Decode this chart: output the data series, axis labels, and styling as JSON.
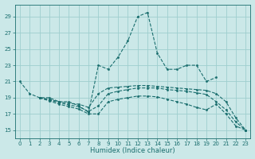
{
  "xlabel": "Humidex (Indice chaleur)",
  "bg_color": "#cbe8e8",
  "grid_color": "#9ecece",
  "line_color": "#1a6e6e",
  "xlim": [
    -0.5,
    23.5
  ],
  "ylim": [
    14.0,
    30.5
  ],
  "yticks": [
    15,
    17,
    19,
    21,
    23,
    25,
    27,
    29
  ],
  "xticks": [
    0,
    1,
    2,
    3,
    4,
    5,
    6,
    7,
    8,
    9,
    10,
    11,
    12,
    13,
    14,
    15,
    16,
    17,
    18,
    19,
    20,
    21,
    22,
    23
  ],
  "lines": [
    {
      "x": [
        0,
        1,
        2,
        3,
        4,
        5,
        6,
        7,
        8,
        9,
        10,
        11,
        12,
        13,
        14,
        15,
        16,
        17,
        18,
        19,
        20
      ],
      "y": [
        21.0,
        19.5,
        19.0,
        19.0,
        18.5,
        18.5,
        18.0,
        17.2,
        23.0,
        22.5,
        24.0,
        26.0,
        29.0,
        29.5,
        24.5,
        22.5,
        22.5,
        23.0,
        23.0,
        21.0,
        21.5
      ]
    },
    {
      "x": [
        2,
        3,
        4,
        5,
        6,
        7,
        8,
        9,
        10,
        11,
        12,
        13,
        14,
        15,
        16,
        17,
        18,
        19,
        20,
        21,
        22,
        23
      ],
      "y": [
        19.0,
        18.8,
        18.5,
        18.3,
        18.2,
        17.8,
        19.5,
        20.2,
        20.3,
        20.4,
        20.5,
        20.5,
        20.4,
        20.3,
        20.2,
        20.1,
        20.0,
        19.9,
        19.5,
        18.5,
        16.5,
        15.0
      ]
    },
    {
      "x": [
        2,
        3,
        4,
        5,
        6,
        7,
        8,
        9,
        10,
        11,
        12,
        13,
        14,
        15,
        16,
        17,
        18,
        19,
        20,
        21,
        22,
        23
      ],
      "y": [
        19.0,
        18.7,
        18.4,
        18.1,
        17.9,
        17.3,
        18.0,
        19.5,
        19.8,
        20.0,
        20.2,
        20.2,
        20.2,
        20.0,
        19.9,
        19.8,
        19.6,
        19.4,
        18.5,
        17.5,
        16.0,
        15.0
      ]
    },
    {
      "x": [
        2,
        3,
        4,
        5,
        6,
        7,
        8,
        9,
        10,
        11,
        12,
        13,
        14,
        15,
        16,
        17,
        18,
        19,
        20,
        21,
        22,
        23
      ],
      "y": [
        19.0,
        18.6,
        18.2,
        17.9,
        17.6,
        17.0,
        17.0,
        18.5,
        18.8,
        19.0,
        19.2,
        19.2,
        19.1,
        18.8,
        18.5,
        18.2,
        17.8,
        17.5,
        18.2,
        17.0,
        15.5,
        15.0
      ]
    }
  ]
}
